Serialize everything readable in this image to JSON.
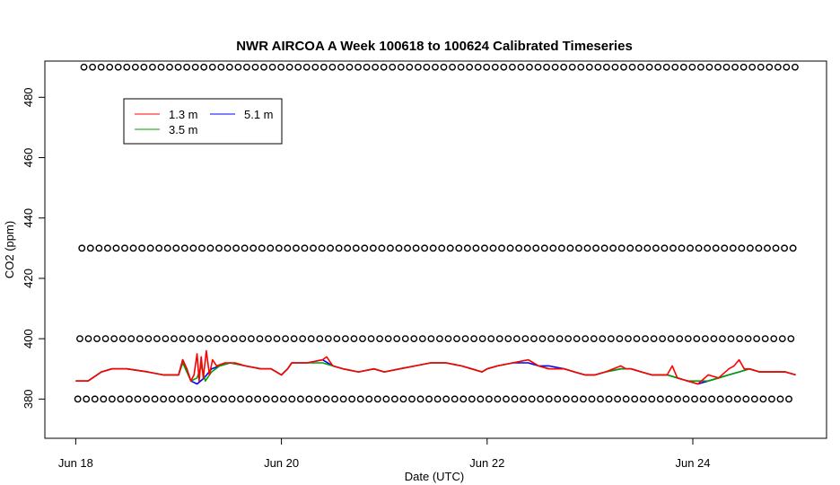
{
  "chart_data": {
    "type": "line",
    "title": "NWR AIRCOA A  Week 100618 to 100624  Calibrated Timeseries",
    "xlabel": "Date (UTC)",
    "ylabel": "CO2 (ppm)",
    "xlim": [
      -0.3,
      7.3
    ],
    "ylim": [
      367,
      492
    ],
    "x_units": "days since Jun 18 00:00 UTC",
    "x_ticks": [
      {
        "value": 0,
        "label": "Jun 18"
      },
      {
        "value": 2,
        "label": "Jun 20"
      },
      {
        "value": 4,
        "label": "Jun 22"
      },
      {
        "value": 6,
        "label": "Jun 24"
      }
    ],
    "y_ticks": [
      380,
      400,
      420,
      440,
      460,
      480
    ],
    "legend": {
      "placement": "top-left",
      "entries": [
        {
          "label": "1.3 m",
          "color": "#ff0000"
        },
        {
          "label": "5.1 m",
          "color": "#0000ff"
        },
        {
          "label": "3.5 m",
          "color": "#00a000"
        }
      ]
    },
    "calibration_rows": [
      {
        "y": 490,
        "x_start": 0.08,
        "x_end": 7.0,
        "spacing": 0.0833
      },
      {
        "y": 430,
        "x_start": 0.06,
        "x_end": 7.0,
        "spacing": 0.0833
      },
      {
        "y": 400,
        "x_start": 0.04,
        "x_end": 7.0,
        "spacing": 0.0833
      },
      {
        "y": 380,
        "x_start": 0.02,
        "x_end": 7.0,
        "spacing": 0.0833
      }
    ],
    "series": [
      {
        "name": "5.1 m",
        "color": "#0000ff",
        "points": [
          [
            0.0,
            386
          ],
          [
            0.12,
            386
          ],
          [
            0.25,
            389
          ],
          [
            0.35,
            390
          ],
          [
            0.5,
            390
          ],
          [
            0.7,
            389
          ],
          [
            0.85,
            388
          ],
          [
            0.95,
            388
          ],
          [
            1.0,
            388
          ],
          [
            1.04,
            393
          ],
          [
            1.08,
            390
          ],
          [
            1.12,
            386
          ],
          [
            1.18,
            385
          ],
          [
            1.25,
            387
          ],
          [
            1.32,
            390
          ],
          [
            1.4,
            391
          ],
          [
            1.5,
            392
          ],
          [
            1.65,
            391
          ],
          [
            1.8,
            390
          ],
          [
            1.9,
            390
          ],
          [
            2.0,
            388
          ],
          [
            2.06,
            390
          ],
          [
            2.1,
            392
          ],
          [
            2.25,
            392
          ],
          [
            2.4,
            393
          ],
          [
            2.5,
            391
          ],
          [
            2.6,
            390
          ],
          [
            2.75,
            389
          ],
          [
            2.9,
            390
          ],
          [
            3.0,
            389
          ],
          [
            3.15,
            390
          ],
          [
            3.3,
            391
          ],
          [
            3.45,
            392
          ],
          [
            3.6,
            392
          ],
          [
            3.75,
            391
          ],
          [
            3.85,
            390
          ],
          [
            3.95,
            389
          ],
          [
            4.0,
            390
          ],
          [
            4.1,
            391
          ],
          [
            4.25,
            392
          ],
          [
            4.4,
            392
          ],
          [
            4.5,
            391
          ],
          [
            4.6,
            391
          ],
          [
            4.75,
            390
          ],
          [
            4.85,
            389
          ],
          [
            4.95,
            388
          ],
          [
            5.05,
            388
          ],
          [
            5.15,
            389
          ],
          [
            5.3,
            390
          ],
          [
            5.4,
            390
          ],
          [
            5.5,
            389
          ],
          [
            5.6,
            388
          ],
          [
            5.75,
            388
          ],
          [
            5.85,
            387
          ],
          [
            5.95,
            386
          ],
          [
            6.05,
            385
          ],
          [
            6.15,
            386
          ],
          [
            6.25,
            387
          ],
          [
            6.35,
            388
          ],
          [
            6.45,
            389
          ],
          [
            6.55,
            390
          ],
          [
            6.65,
            389
          ],
          [
            6.8,
            389
          ],
          [
            6.9,
            389
          ],
          [
            7.0,
            388
          ]
        ]
      },
      {
        "name": "3.5 m",
        "color": "#00a000",
        "points": [
          [
            0.0,
            386
          ],
          [
            0.12,
            386
          ],
          [
            0.25,
            389
          ],
          [
            0.35,
            390
          ],
          [
            0.5,
            390
          ],
          [
            0.7,
            389
          ],
          [
            0.85,
            388
          ],
          [
            0.95,
            388
          ],
          [
            1.0,
            388
          ],
          [
            1.04,
            392
          ],
          [
            1.08,
            389
          ],
          [
            1.12,
            386
          ],
          [
            1.18,
            387
          ],
          [
            1.22,
            391
          ],
          [
            1.26,
            386
          ],
          [
            1.32,
            389
          ],
          [
            1.4,
            391
          ],
          [
            1.5,
            392
          ],
          [
            1.65,
            391
          ],
          [
            1.8,
            390
          ],
          [
            1.9,
            390
          ],
          [
            2.0,
            388
          ],
          [
            2.06,
            390
          ],
          [
            2.1,
            392
          ],
          [
            2.25,
            392
          ],
          [
            2.4,
            392
          ],
          [
            2.5,
            391
          ],
          [
            2.6,
            390
          ],
          [
            2.75,
            389
          ],
          [
            2.9,
            390
          ],
          [
            3.0,
            389
          ],
          [
            3.15,
            390
          ],
          [
            3.3,
            391
          ],
          [
            3.45,
            392
          ],
          [
            3.6,
            392
          ],
          [
            3.75,
            391
          ],
          [
            3.85,
            390
          ],
          [
            3.95,
            389
          ],
          [
            4.0,
            390
          ],
          [
            4.1,
            391
          ],
          [
            4.25,
            392
          ],
          [
            4.4,
            393
          ],
          [
            4.5,
            391
          ],
          [
            4.6,
            390
          ],
          [
            4.75,
            390
          ],
          [
            4.85,
            389
          ],
          [
            4.95,
            388
          ],
          [
            5.05,
            388
          ],
          [
            5.15,
            389
          ],
          [
            5.3,
            390
          ],
          [
            5.4,
            390
          ],
          [
            5.5,
            389
          ],
          [
            5.6,
            388
          ],
          [
            5.75,
            388
          ],
          [
            5.85,
            387
          ],
          [
            5.95,
            386
          ],
          [
            6.05,
            386
          ],
          [
            6.15,
            386
          ],
          [
            6.25,
            387
          ],
          [
            6.35,
            388
          ],
          [
            6.45,
            389
          ],
          [
            6.55,
            390
          ],
          [
            6.65,
            389
          ],
          [
            6.8,
            389
          ],
          [
            6.9,
            389
          ],
          [
            7.0,
            388
          ]
        ]
      },
      {
        "name": "1.3 m",
        "color": "#ff0000",
        "points": [
          [
            0.0,
            386
          ],
          [
            0.12,
            386
          ],
          [
            0.25,
            389
          ],
          [
            0.35,
            390
          ],
          [
            0.5,
            390
          ],
          [
            0.7,
            389
          ],
          [
            0.85,
            388
          ],
          [
            0.95,
            388
          ],
          [
            1.0,
            388
          ],
          [
            1.04,
            393
          ],
          [
            1.08,
            390
          ],
          [
            1.12,
            386
          ],
          [
            1.15,
            388
          ],
          [
            1.18,
            395
          ],
          [
            1.2,
            386
          ],
          [
            1.22,
            394
          ],
          [
            1.24,
            387
          ],
          [
            1.27,
            396
          ],
          [
            1.3,
            388
          ],
          [
            1.33,
            393
          ],
          [
            1.37,
            391
          ],
          [
            1.45,
            392
          ],
          [
            1.55,
            392
          ],
          [
            1.65,
            391
          ],
          [
            1.8,
            390
          ],
          [
            1.9,
            390
          ],
          [
            2.0,
            388
          ],
          [
            2.06,
            390
          ],
          [
            2.1,
            392
          ],
          [
            2.25,
            392
          ],
          [
            2.4,
            393
          ],
          [
            2.44,
            394
          ],
          [
            2.5,
            391
          ],
          [
            2.6,
            390
          ],
          [
            2.75,
            389
          ],
          [
            2.9,
            390
          ],
          [
            3.0,
            389
          ],
          [
            3.15,
            390
          ],
          [
            3.3,
            391
          ],
          [
            3.45,
            392
          ],
          [
            3.6,
            392
          ],
          [
            3.75,
            391
          ],
          [
            3.85,
            390
          ],
          [
            3.95,
            389
          ],
          [
            4.0,
            390
          ],
          [
            4.1,
            391
          ],
          [
            4.25,
            392
          ],
          [
            4.4,
            393
          ],
          [
            4.5,
            391
          ],
          [
            4.6,
            390
          ],
          [
            4.75,
            390
          ],
          [
            4.85,
            389
          ],
          [
            4.95,
            388
          ],
          [
            5.05,
            388
          ],
          [
            5.15,
            389
          ],
          [
            5.3,
            391
          ],
          [
            5.35,
            390
          ],
          [
            5.4,
            390
          ],
          [
            5.5,
            389
          ],
          [
            5.6,
            388
          ],
          [
            5.75,
            388
          ],
          [
            5.8,
            391
          ],
          [
            5.85,
            387
          ],
          [
            5.95,
            386
          ],
          [
            6.05,
            385
          ],
          [
            6.15,
            388
          ],
          [
            6.25,
            387
          ],
          [
            6.35,
            390
          ],
          [
            6.4,
            391
          ],
          [
            6.45,
            393
          ],
          [
            6.5,
            390
          ],
          [
            6.55,
            390
          ],
          [
            6.65,
            389
          ],
          [
            6.8,
            389
          ],
          [
            6.9,
            389
          ],
          [
            7.0,
            388
          ]
        ]
      }
    ]
  }
}
